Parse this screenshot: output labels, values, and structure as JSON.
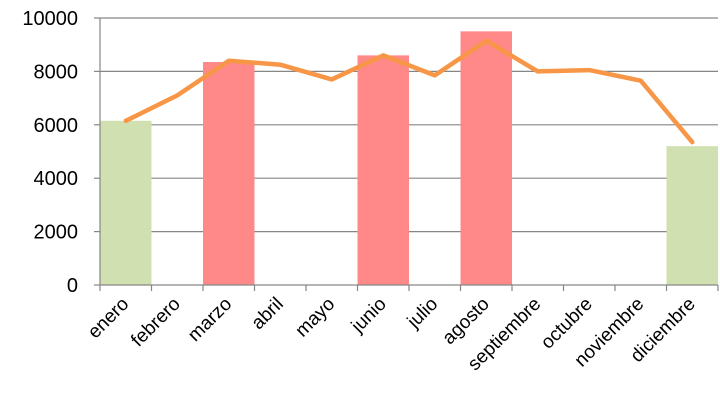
{
  "chart_data": {
    "type": "bar",
    "categories": [
      "enero",
      "febrero",
      "marzo",
      "abril",
      "mayo",
      "junio",
      "julio",
      "agosto",
      "septiembre",
      "octubre",
      "noviembre",
      "diciembre"
    ],
    "ylim": [
      0,
      10000
    ],
    "yticks": [
      "0",
      "2000",
      "4000",
      "6000",
      "8000",
      "10000"
    ],
    "ytick_values": [
      0,
      2000,
      4000,
      6000,
      8000,
      10000
    ],
    "grid": true,
    "legend": "none",
    "series": [
      {
        "type": "bar",
        "values": [
          6150,
          null,
          8350,
          null,
          null,
          8600,
          null,
          9500,
          null,
          null,
          null,
          5200
        ],
        "colors": [
          "#d1e0b0",
          null,
          "#ff8888",
          null,
          null,
          "#ff8888",
          null,
          "#ff8888",
          null,
          null,
          null,
          "#d1e0b0"
        ]
      },
      {
        "type": "line",
        "color": "#f79646",
        "values": [
          6150,
          7100,
          8400,
          8250,
          7700,
          8600,
          7850,
          9150,
          8000,
          8050,
          7650,
          5350
        ]
      }
    ],
    "colors": {
      "high_bar": "#ff8888",
      "low_bar": "#d1e0b0",
      "line": "#f79646",
      "grid": "#868686"
    }
  }
}
